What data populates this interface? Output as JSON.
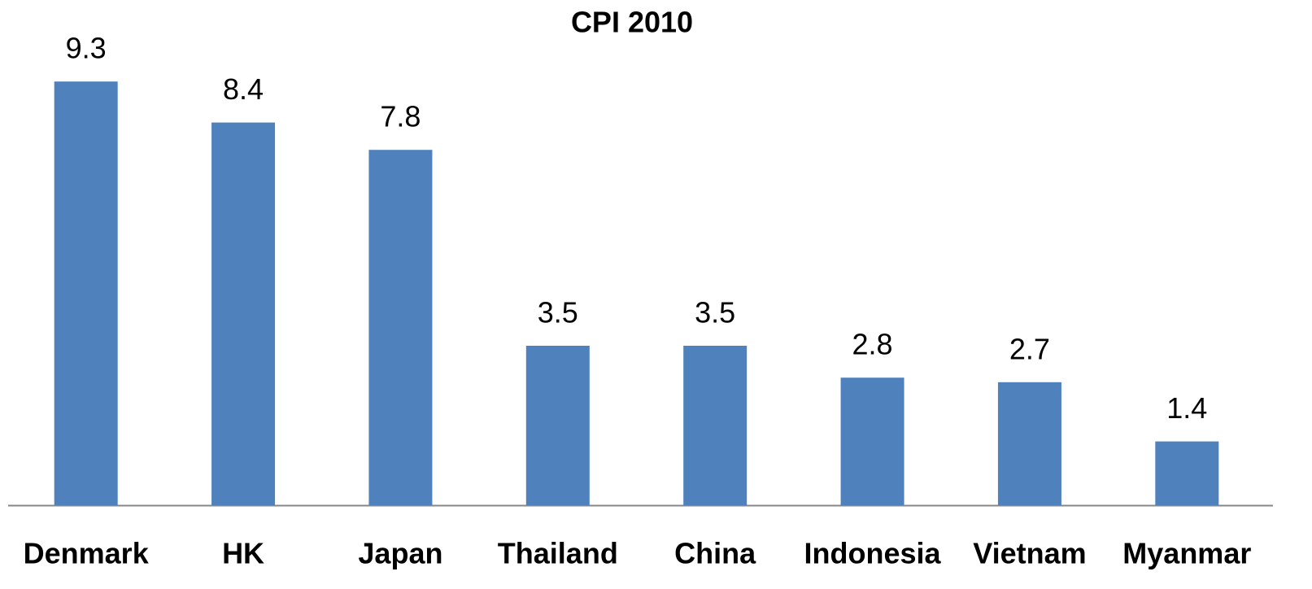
{
  "chart_data": {
    "type": "bar",
    "title": "CPI  2010",
    "categories": [
      "Denmark",
      "HK",
      "Japan",
      "Thailand",
      "China",
      "Indonesia",
      "Vietnam",
      "Myanmar"
    ],
    "values": [
      9.3,
      8.4,
      7.8,
      3.5,
      3.5,
      2.8,
      2.7,
      1.4
    ],
    "color": "#4f81bd",
    "data_labels": true
  }
}
